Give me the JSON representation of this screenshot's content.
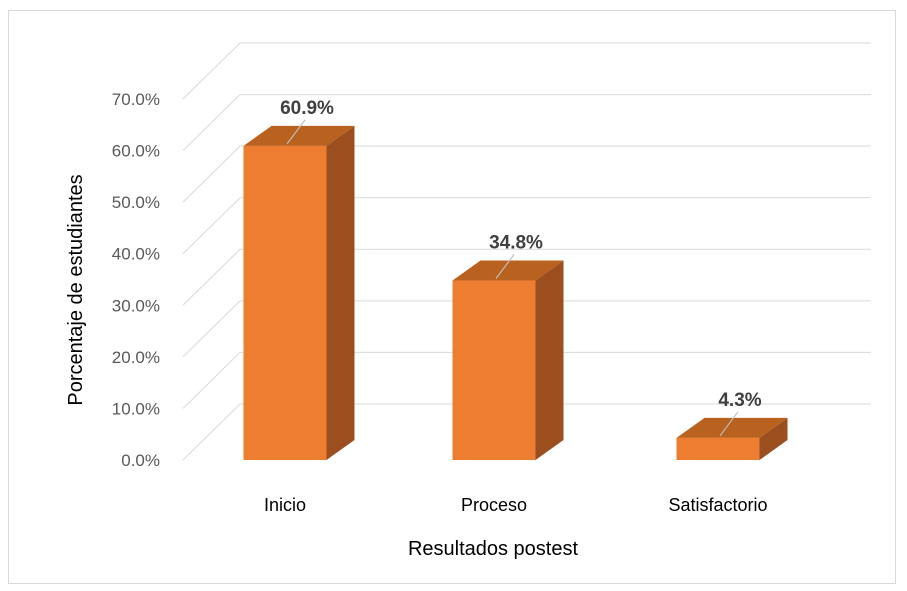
{
  "chart_data": {
    "type": "bar",
    "categories": [
      "Inicio",
      "Proceso",
      "Satisfactorio"
    ],
    "values": [
      60.9,
      34.8,
      4.3
    ],
    "data_labels": [
      "60.9%",
      "34.8%",
      "4.3%"
    ],
    "xlabel": "Resultados postest",
    "ylabel": "Porcentaje de estudiantes",
    "ylim": [
      0,
      70
    ],
    "yticks": [
      0,
      10,
      20,
      30,
      40,
      50,
      60,
      70
    ],
    "ytick_labels": [
      "0.0%",
      "10.0%",
      "20.0%",
      "30.0%",
      "40.0%",
      "50.0%",
      "60.0%",
      "70.0%"
    ],
    "grid": true,
    "legend": "none",
    "three_d": true,
    "colors": {
      "front": "#ED7D31",
      "side": "#9C4F1E",
      "top": "#B9611F",
      "grid": "#D9D9D9"
    }
  }
}
